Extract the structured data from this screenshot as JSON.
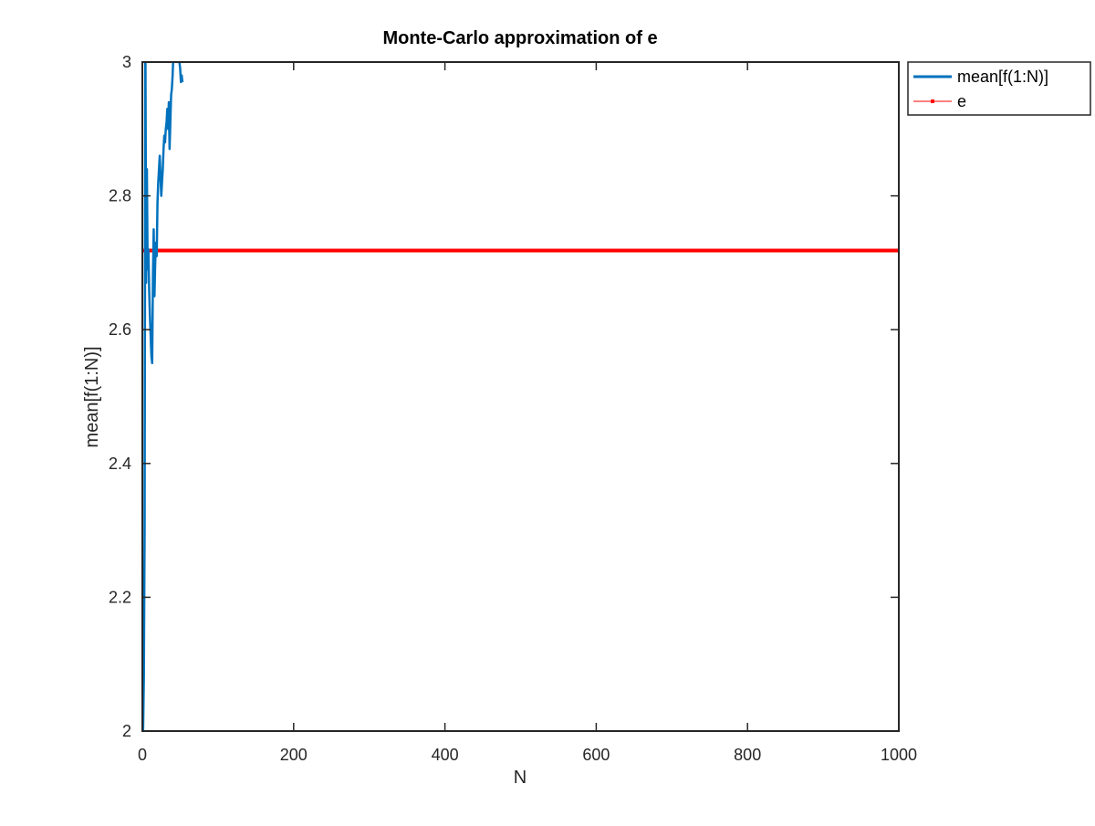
{
  "chart_data": {
    "type": "line",
    "title": "Monte-Carlo approximation of e",
    "xlabel": "N",
    "ylabel": "mean[f(1:N)]",
    "xlim": [
      0,
      1000
    ],
    "ylim": [
      2,
      3
    ],
    "xticks": [
      "0",
      "200",
      "400",
      "600",
      "800",
      "1000"
    ],
    "yticks": [
      "2",
      "2.2",
      "2.4",
      "2.6",
      "2.8",
      "3"
    ],
    "grid": false,
    "legend_position": "outside-top-right",
    "series": [
      {
        "name": "mean[f(1:N)]",
        "color": "#0072BD",
        "x": [
          1,
          2,
          3,
          4,
          5,
          6,
          7,
          8,
          9,
          10,
          11,
          12,
          13,
          14,
          15,
          16,
          17,
          18,
          19,
          20,
          21,
          22,
          23,
          24,
          25,
          26,
          27,
          28,
          29,
          30,
          31,
          32,
          33,
          34,
          35,
          36,
          37,
          38,
          39,
          40,
          41,
          42,
          43,
          44,
          45,
          46,
          47,
          48,
          49,
          50,
          51,
          52,
          53
        ],
        "y": [
          2,
          2.08,
          2.3,
          3.05,
          2.67,
          2.84,
          2.69,
          2.72,
          2.66,
          2.62,
          2.59,
          2.56,
          2.55,
          2.68,
          2.75,
          2.65,
          2.7,
          2.73,
          2.71,
          2.79,
          2.82,
          2.84,
          2.86,
          2.83,
          2.8,
          2.82,
          2.84,
          2.87,
          2.89,
          2.88,
          2.9,
          2.91,
          2.93,
          2.9,
          2.94,
          2.87,
          2.91,
          2.95,
          2.96,
          2.98,
          3.01,
          3.0,
          3.01,
          3.02,
          3.01,
          3.0,
          3.01,
          3.02,
          3.0,
          2.99,
          2.97,
          2.98,
          2.97
        ]
      },
      {
        "name": "e",
        "color": "#FF0000",
        "x": [
          0,
          1000
        ],
        "y": [
          2.71828,
          2.71828
        ]
      }
    ]
  }
}
